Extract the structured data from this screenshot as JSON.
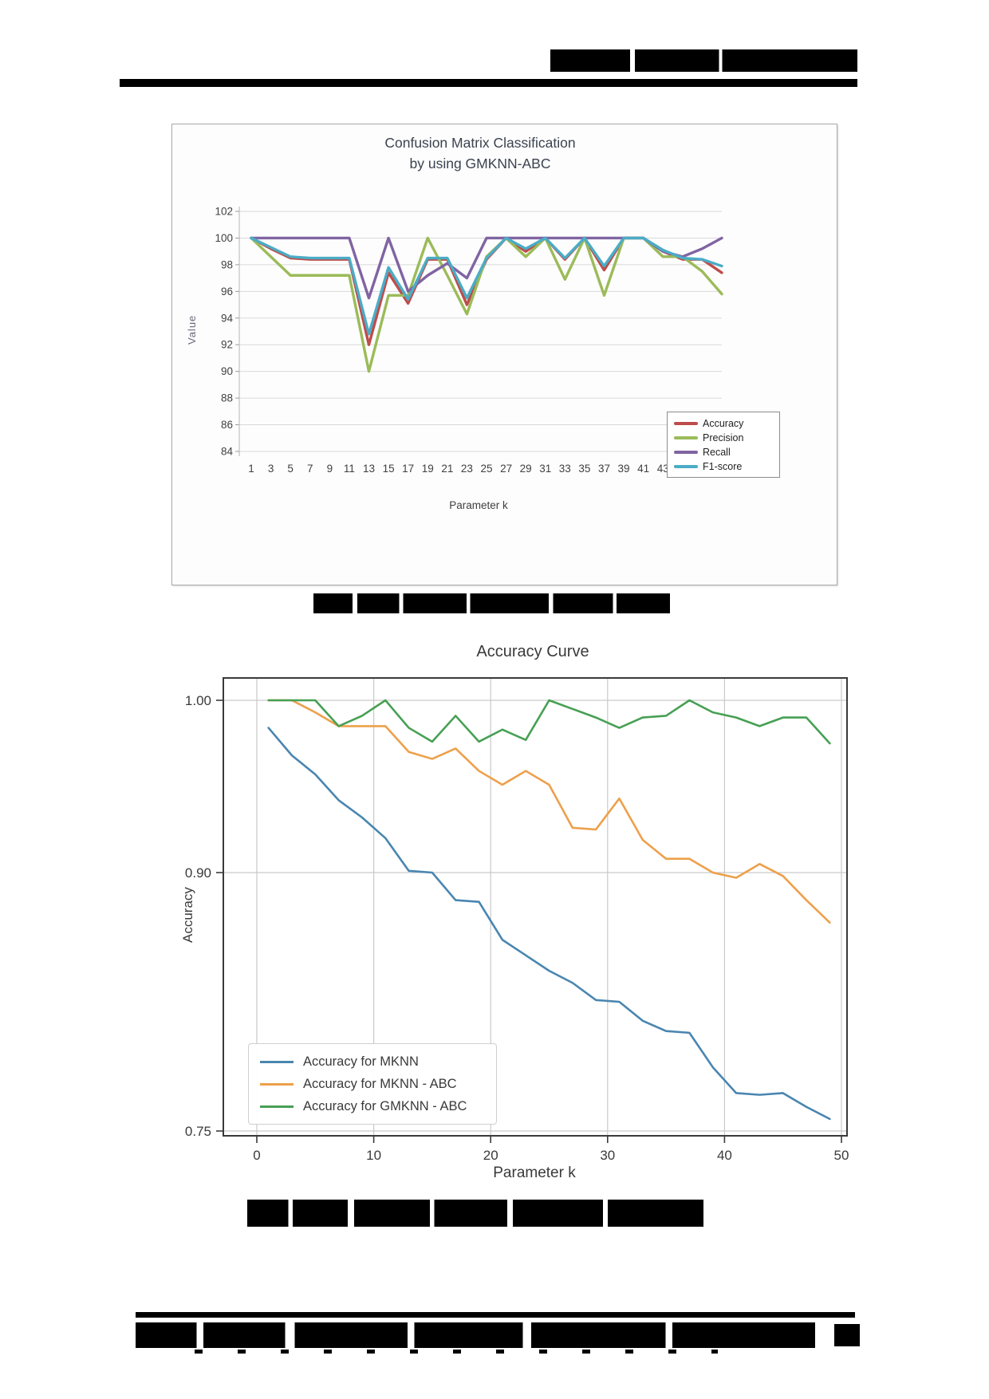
{
  "document": {
    "header": {
      "running_title_redacted": true
    },
    "figure1_caption_redacted": true,
    "figure2_caption_redacted": true,
    "footer": {
      "citation_redacted": true,
      "page_number_redacted": true
    }
  },
  "chart_data": [
    {
      "type": "line",
      "title": "Confusion Matrix Classification",
      "title_line2": "by using GMKNN-ABC",
      "xlabel": "Parameter k",
      "ylabel": "Value",
      "ylim": [
        84,
        102
      ],
      "yticks": [
        84,
        86,
        88,
        90,
        92,
        94,
        96,
        98,
        100,
        102
      ],
      "grid": true,
      "legend_position": "right-inside",
      "categories": [
        1,
        3,
        5,
        7,
        9,
        11,
        13,
        15,
        17,
        19,
        21,
        23,
        25,
        27,
        29,
        31,
        33,
        35,
        37,
        39,
        41,
        43,
        45,
        47,
        49
      ],
      "series": [
        {
          "name": "Accuracy",
          "color": "#BE4C4A",
          "values": [
            100,
            99.2,
            98.5,
            98.4,
            98.4,
            98.4,
            92.0,
            97.4,
            95.1,
            98.4,
            98.4,
            95.0,
            98.4,
            100,
            99.0,
            100,
            98.4,
            100,
            97.6,
            100,
            100,
            99.0,
            98.4,
            98.4,
            97.4
          ]
        },
        {
          "name": "Precision",
          "color": "#9BBB59",
          "values": [
            100,
            98.6,
            97.2,
            97.2,
            97.2,
            97.2,
            90.0,
            95.7,
            95.7,
            100,
            97.2,
            94.3,
            98.6,
            100,
            98.6,
            100,
            96.9,
            100,
            95.7,
            100,
            100,
            98.6,
            98.6,
            97.5,
            95.8
          ]
        },
        {
          "name": "Recall",
          "color": "#8064A2",
          "values": [
            100,
            100,
            100,
            100,
            100,
            100,
            95.5,
            100,
            96.0,
            97.2,
            98.1,
            97.0,
            100,
            100,
            100,
            100,
            100,
            100,
            100,
            100,
            100,
            99.0,
            98.6,
            99.2,
            100
          ]
        },
        {
          "name": "F1-score",
          "color": "#4BACC6",
          "values": [
            100,
            99.3,
            98.6,
            98.5,
            98.5,
            98.5,
            92.8,
            97.8,
            95.4,
            98.5,
            98.5,
            95.5,
            98.5,
            100,
            99.2,
            100,
            98.5,
            100,
            97.9,
            100,
            100,
            99.1,
            98.5,
            98.4,
            97.9
          ]
        }
      ]
    },
    {
      "type": "line",
      "title": "Accuracy Curve",
      "xlabel": "Parameter k",
      "ylabel": "Accuracy",
      "ylim": [
        0.747,
        1.014
      ],
      "xlim": [
        -3,
        50.5
      ],
      "yticks": [
        0.75,
        0.9,
        1.0
      ],
      "ytick_labels": [
        "0.75",
        "0.90",
        "1.00"
      ],
      "xticks": [
        0,
        10,
        20,
        30,
        40,
        50
      ],
      "grid": true,
      "legend_position": "lower-left",
      "x": [
        1,
        3,
        5,
        7,
        9,
        11,
        13,
        15,
        17,
        19,
        21,
        23,
        25,
        27,
        29,
        31,
        33,
        35,
        37,
        39,
        41,
        43,
        45,
        47,
        49
      ],
      "series": [
        {
          "name": "Accuracy for MKNN",
          "color": "#4986B0",
          "values": [
            0.984,
            0.968,
            0.957,
            0.942,
            0.932,
            0.92,
            0.901,
            0.9,
            0.884,
            0.883,
            0.861,
            0.852,
            0.843,
            0.836,
            0.826,
            0.825,
            0.814,
            0.808,
            0.807,
            0.787,
            0.772,
            0.771,
            0.772,
            0.764,
            0.757
          ]
        },
        {
          "name": "Accuracy for MKNN - ABC",
          "color": "#EDA04B",
          "values": [
            1.0,
            1.0,
            0.993,
            0.985,
            0.985,
            0.985,
            0.97,
            0.966,
            0.972,
            0.959,
            0.951,
            0.959,
            0.951,
            0.926,
            0.925,
            0.943,
            0.919,
            0.908,
            0.908,
            0.9,
            0.897,
            0.905,
            0.898,
            0.884,
            0.871
          ]
        },
        {
          "name": "Accuracy for GMKNN - ABC",
          "color": "#47A054",
          "values": [
            1.0,
            1.0,
            1.0,
            0.985,
            0.991,
            1.0,
            0.984,
            0.976,
            0.991,
            0.976,
            0.983,
            0.977,
            1.0,
            0.995,
            0.99,
            0.984,
            0.99,
            0.991,
            1.0,
            0.993,
            0.99,
            0.985,
            0.99,
            0.99,
            0.975
          ]
        }
      ]
    }
  ]
}
